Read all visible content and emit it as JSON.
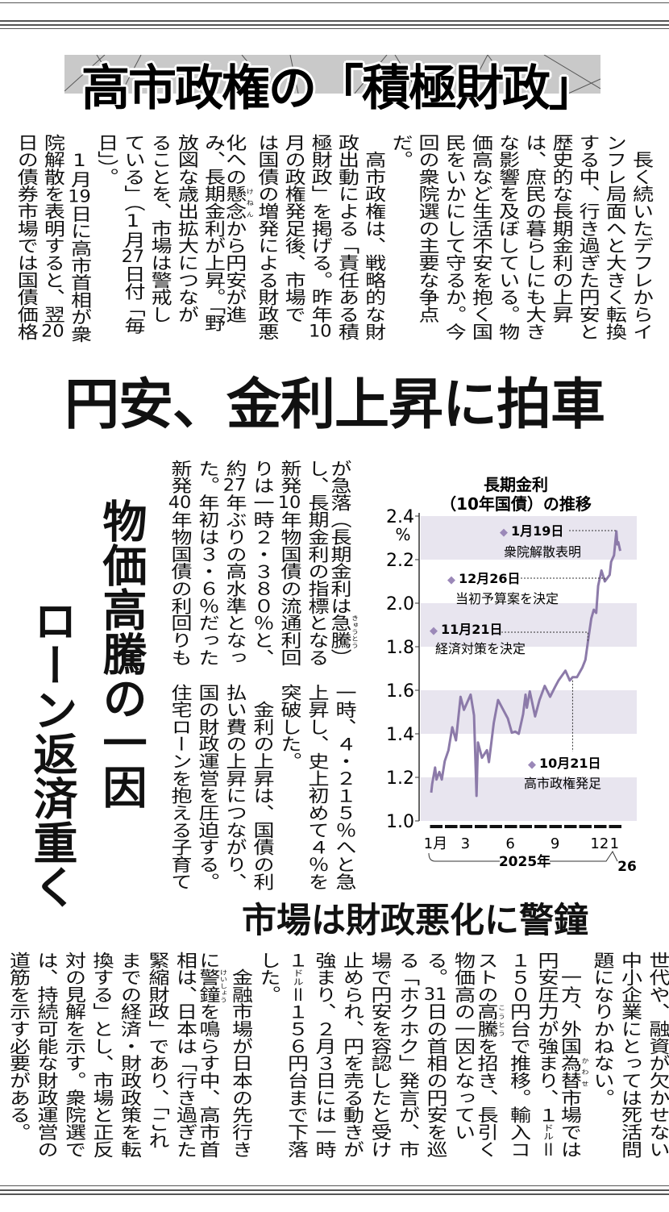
{
  "title": "高市政権の「積極財政」",
  "intro": {
    "columns": [
      "　長く続いたデフレからイ",
      "ンフレ局面へと大きく転換",
      "する中、行き過ぎた円安と",
      "歴史的な長期金利の上昇",
      "は、庶民の暮らしにも大き",
      "な影響を及ぼしている。物",
      "価高など生活不安を抱く国",
      "民をいかにして守るか。今",
      "回の衆院選の主要な争点",
      "だ。",
      "　高市政権は、戦略的な財",
      "政出動による「責任ある積",
      "極財政」を掲げる。昨年10",
      "月の政権発足後、市場で",
      "は国債の増発による財政悪",
      "化への｜懸念《けねん》から円安が進",
      "み、長期金利が上昇。「野",
      "放図な歳出拡大につなが",
      "ることを、市場は警戒し",
      "ている」（1月27日付「毎",
      "日」）。",
      "　1月19日に高市首相が衆",
      "院解散を表明すると、翌20",
      "日の債券市場では国債価格"
    ]
  },
  "headline": "円安、金利上昇に拍車",
  "side_headlines": [
    "物価高騰の一因",
    "ローン返済重く"
  ],
  "middle": {
    "upper_columns": [
      "が急落（長期金利は｜急騰《きゅうとう》）",
      "し、長期金利の指標となる",
      "新発10年物国債の流通利回",
      "りは一時２・３８０％と、",
      "約27年ぶりの高水準となっ",
      "た。年初は３・６％だった",
      "新発40年物国債の利回りも"
    ],
    "lower_columns": [
      "一時、４・２１５％へと急",
      "上昇し、史上初めて４％を",
      "突破した。",
      "　金利の上昇は、国債の利",
      "払い費の上昇につながり、",
      "国の財政運営を圧迫する。",
      "住宅ローンを抱える子育て"
    ]
  },
  "subheadline": "市場は財政悪化に警鐘",
  "closing": {
    "columns": [
      "世代や、融資が欠かせない",
      "中小企業にとっては死活問",
      "題になりかねない。",
      "　一方、外国｜為替《かわせ》市場では",
      "円安圧力が強まり、１〔ドル〕＝",
      "１５０円台で推移。輸入コ",
      "ストの｜高騰《こうとう》を招き、長引く",
      "物価高の一因となってい",
      "る。31日の首相の円安を巡",
      "る「ホクホク」発言が、市",
      "場で円安を容認したと受け",
      "止められ、円を売る動きが",
      "強まり、２月３日には一時",
      "１〔ドル〕＝１５６円台まで下落",
      "した。",
      "　金融市場が日本の先行き",
      "に｜警鐘《けいしょう》を鳴らす中、高市首",
      "相は、日本は「行き過ぎた",
      "緊縮財政」であり、「これ",
      "までの経済・財政政策を転",
      "換する」とし、市場と正反",
      "対の見解を示す。衆院選で",
      "は、持続可能な財政運営の",
      "道筋を示す必要がある。"
    ]
  },
  "chart_data": {
    "type": "line",
    "title": [
      "長期金利",
      "（10年国債）の推移"
    ],
    "yunit": "%",
    "ylim": [
      1.0,
      2.4
    ],
    "yticks": [
      "1.0",
      "1.2",
      "1.4",
      "1.6",
      "1.8",
      "2.0",
      "2.2",
      "2.4"
    ],
    "shaded_bands": [
      [
        1.0,
        1.2
      ],
      [
        1.4,
        1.6
      ],
      [
        1.8,
        2.0
      ],
      [
        2.2,
        2.4
      ]
    ],
    "xlim": [
      "2025-01",
      "2026-01"
    ],
    "xtick_labels": [
      {
        "month": "2025-01",
        "label": "1月"
      },
      {
        "month": "2025-03",
        "label": "3"
      },
      {
        "month": "2025-06",
        "label": "6"
      },
      {
        "month": "2025-09",
        "label": "9"
      },
      {
        "month": "2025-12",
        "label": "12"
      },
      {
        "month": "2026-01",
        "label": "1"
      }
    ],
    "year_labels": [
      "2025年",
      "26"
    ],
    "colors": {
      "line": "#8c7aa9",
      "band": "#e8e5ef",
      "marker": "#9b88b8"
    },
    "series": [
      {
        "values": [
          [
            "2025-01-06",
            1.13
          ],
          [
            "2025-01-08",
            1.17
          ],
          [
            "2025-01-14",
            1.245
          ],
          [
            "2025-01-17",
            1.19
          ],
          [
            "2025-01-23",
            1.225
          ],
          [
            "2025-01-28",
            1.19
          ],
          [
            "2025-02-03",
            1.275
          ],
          [
            "2025-02-10",
            1.325
          ],
          [
            "2025-02-17",
            1.43
          ],
          [
            "2025-02-24",
            1.37
          ],
          [
            "2025-03-05",
            1.57
          ],
          [
            "2025-03-12",
            1.51
          ],
          [
            "2025-03-26",
            1.58
          ],
          [
            "2025-04-02",
            1.485
          ],
          [
            "2025-04-07",
            1.115
          ],
          [
            "2025-04-10",
            1.36
          ],
          [
            "2025-04-18",
            1.29
          ],
          [
            "2025-04-28",
            1.325
          ],
          [
            "2025-05-02",
            1.27
          ],
          [
            "2025-05-12",
            1.45
          ],
          [
            "2025-05-21",
            1.555
          ],
          [
            "2025-06-02",
            1.505
          ],
          [
            "2025-06-10",
            1.47
          ],
          [
            "2025-06-18",
            1.405
          ],
          [
            "2025-06-25",
            1.41
          ],
          [
            "2025-07-02",
            1.4
          ],
          [
            "2025-07-11",
            1.49
          ],
          [
            "2025-07-16",
            1.58
          ],
          [
            "2025-07-19",
            1.52
          ],
          [
            "2025-07-25",
            1.595
          ],
          [
            "2025-08-05",
            1.48
          ],
          [
            "2025-08-14",
            1.555
          ],
          [
            "2025-08-25",
            1.62
          ],
          [
            "2025-09-05",
            1.57
          ],
          [
            "2025-09-15",
            1.615
          ],
          [
            "2025-09-22",
            1.645
          ],
          [
            "2025-10-06",
            1.69
          ],
          [
            "2025-10-15",
            1.645
          ],
          [
            "2025-10-21",
            1.66
          ],
          [
            "2025-10-30",
            1.66
          ],
          [
            "2025-11-10",
            1.705
          ],
          [
            "2025-11-16",
            1.74
          ],
          [
            "2025-11-21",
            1.82
          ],
          [
            "2025-11-28",
            1.93
          ],
          [
            "2025-12-03",
            1.97
          ],
          [
            "2025-12-08",
            1.955
          ],
          [
            "2025-12-12",
            2.08
          ],
          [
            "2025-12-19",
            2.15
          ],
          [
            "2025-12-26",
            2.1
          ],
          [
            "2026-01-05",
            2.13
          ],
          [
            "2026-01-08",
            2.19
          ],
          [
            "2026-01-14",
            2.22
          ],
          [
            "2026-01-19",
            2.33
          ],
          [
            "2026-01-21",
            2.27
          ],
          [
            "2026-01-23",
            2.28
          ],
          [
            "2026-01-27",
            2.24
          ]
        ]
      }
    ],
    "annotations": [
      {
        "date": "2026-01-19",
        "label": "1月19日",
        "text": "衆院解散表明"
      },
      {
        "date": "2025-12-26",
        "label": "12月26日",
        "text": "当初予算案を決定"
      },
      {
        "date": "2025-11-21",
        "label": "11月21日",
        "text": "経済対策を決定"
      },
      {
        "date": "2025-10-21",
        "label": "10月21日",
        "text": "高市政権発足"
      }
    ]
  }
}
